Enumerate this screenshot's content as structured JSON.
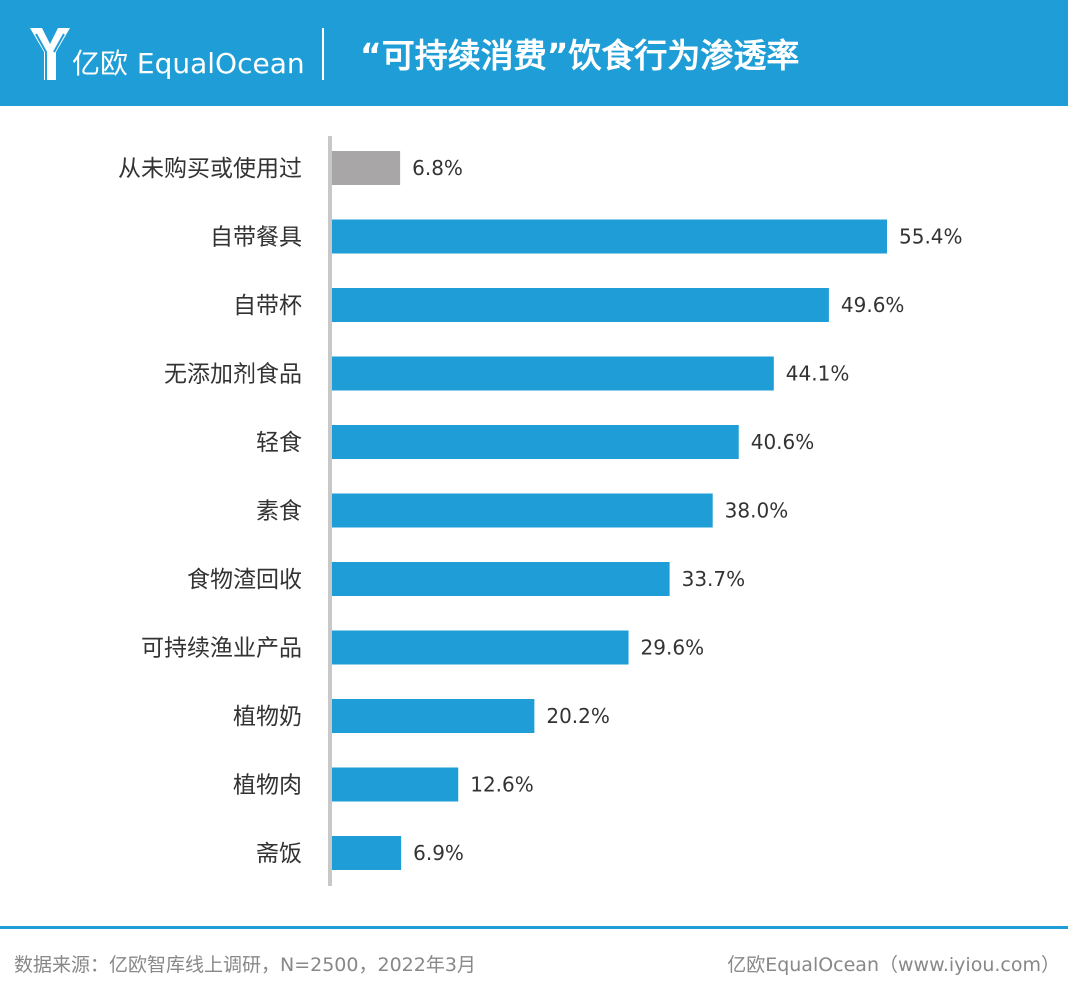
{
  "header": {
    "logo_text": "亿欧 EqualOcean",
    "title": "“可持续消费”饮食行为渗透率"
  },
  "colors": {
    "accent": "#1e9dd6",
    "bar": "#1e9dd6",
    "bar_muted": "#a8a6a7",
    "axis": "#c8c8c8"
  },
  "chart_data": {
    "type": "bar",
    "orientation": "horizontal",
    "title": "“可持续消费”饮食行为渗透率",
    "categories": [
      "从未购买或使用过",
      "自带餐具",
      "自带杯",
      "无添加剂食品",
      "轻食",
      "素食",
      "食物渣回收",
      "可持续渔业产品",
      "植物奶",
      "植物肉",
      "斋饭"
    ],
    "values": [
      6.8,
      55.4,
      49.6,
      44.1,
      40.6,
      38.0,
      33.7,
      29.6,
      20.2,
      12.6,
      6.9
    ],
    "value_labels": [
      "6.8%",
      "55.4%",
      "49.6%",
      "44.1%",
      "40.6%",
      "38.0%",
      "33.7%",
      "29.6%",
      "20.2%",
      "12.6%",
      "6.9%"
    ],
    "highlight_gray": [
      "从未购买或使用过"
    ],
    "unit": "%",
    "xlim": [
      0,
      60
    ],
    "grid": false,
    "legend": "none"
  },
  "footer": {
    "source": "数据来源：亿欧智库线上调研，N=2500，2022年3月",
    "brand": "亿欧EqualOcean（www.iyiou.com）"
  }
}
